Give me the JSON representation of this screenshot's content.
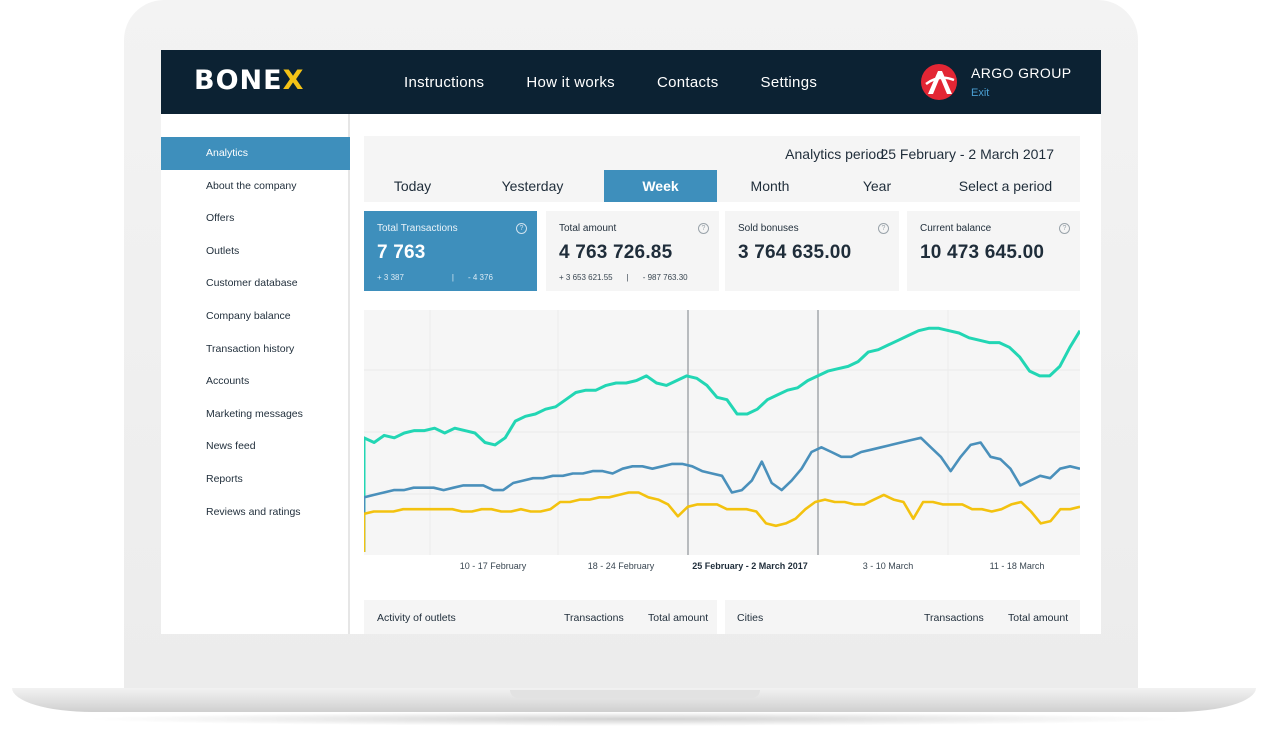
{
  "header": {
    "logo_main": "BONE",
    "logo_accent": "X",
    "nav": [
      "Instructions",
      "How it works",
      "Contacts",
      "Settings"
    ],
    "company": "ARGO GROUP",
    "exit": "Exit",
    "avatar_letter": "A",
    "colors": {
      "bar": "#0c2233",
      "accent": "#f4c316",
      "avatar": "#e32634"
    }
  },
  "sidebar": {
    "items": [
      "Analytics",
      "About the company",
      "Offers",
      "Outlets",
      "Customer database",
      "Company balance",
      "Transaction history",
      "Accounts",
      "Marketing messages",
      "News feed",
      "Reports",
      "Reviews and ratings"
    ],
    "active_index": 0,
    "active_color": "#3e8fbc"
  },
  "period": {
    "label": "Analytics period",
    "value": "25 February - 2 March 2017",
    "tabs": [
      "Today",
      "Yesterday",
      "Week",
      "Month",
      "Year",
      "Select a period"
    ],
    "active_tab": 2
  },
  "stats": [
    {
      "title": "Total Transactions",
      "value": "7 763",
      "plus": "+ 3 387",
      "minus": "- 4 376",
      "active": true
    },
    {
      "title": "Total amount",
      "value": "4 763 726.85",
      "plus": "+ 3 653 621.55",
      "minus": "- 987 763.30",
      "active": false
    },
    {
      "title": "Sold bonuses",
      "value": "3 764 635.00",
      "plus": "",
      "minus": "",
      "active": false
    },
    {
      "title": "Current balance",
      "value": "10 473 645.00",
      "plus": "",
      "minus": "",
      "active": false
    }
  ],
  "help_symbol": "?",
  "chart_data": {
    "type": "line",
    "x_labels": [
      "10 - 17 February",
      "18 - 24 February",
      "25 February - 2 March 2017",
      "3 - 10 March",
      "11 - 18 March"
    ],
    "highlighted_label": "25 February - 2 March 2017",
    "grid": true,
    "series": [
      {
        "color": "#22d6b4",
        "values": [
          48,
          46,
          49,
          48,
          50,
          51,
          51,
          52,
          50,
          52,
          51,
          50,
          46,
          45,
          48,
          55,
          57,
          58,
          60,
          61,
          64,
          67,
          68,
          68,
          70,
          71,
          71,
          72,
          74,
          71,
          70,
          72,
          74,
          73,
          70,
          65,
          64,
          58,
          58,
          60,
          64,
          66,
          68,
          69,
          72,
          74,
          76,
          77,
          78,
          80,
          84,
          85,
          87,
          89,
          91,
          93,
          94,
          94,
          93,
          92,
          90,
          89,
          88,
          88,
          86,
          82,
          76,
          74,
          74,
          78,
          86,
          93
        ]
      },
      {
        "color": "#4a90bb",
        "values": [
          23,
          24,
          25,
          26,
          26,
          27,
          27,
          27,
          26,
          27,
          28,
          28,
          28,
          26,
          26,
          29,
          30,
          31,
          31,
          32,
          32,
          33,
          33,
          34,
          34,
          33,
          35,
          36,
          36,
          35,
          36,
          37,
          37,
          36,
          34,
          33,
          32,
          25,
          26,
          30,
          38,
          29,
          26,
          30,
          35,
          42,
          44,
          42,
          40,
          40,
          42,
          43,
          44,
          45,
          46,
          47,
          48,
          44,
          40,
          34,
          40,
          45,
          46,
          40,
          39,
          35,
          28,
          30,
          32,
          31,
          35,
          36,
          35
        ]
      },
      {
        "color": "#f3c20f",
        "values": [
          16,
          17,
          17,
          17,
          18,
          18,
          18,
          18,
          18,
          18,
          17,
          17,
          18,
          18,
          17,
          17,
          18,
          17,
          17,
          18,
          21,
          21,
          22,
          22,
          23,
          23,
          24,
          25,
          25,
          23,
          22,
          20,
          15,
          19,
          20,
          20,
          20,
          18,
          18,
          18,
          17,
          12,
          11,
          12,
          14,
          18,
          21,
          22,
          21,
          21,
          20,
          20,
          22,
          24,
          22,
          21,
          14,
          21,
          21,
          20,
          20,
          20,
          18,
          18,
          17,
          18,
          20,
          21,
          17,
          12,
          13,
          18,
          18,
          19
        ]
      }
    ]
  },
  "tables": {
    "outlets": {
      "title": "Activity of outlets",
      "col1": "Transactions",
      "col2": "Total amount"
    },
    "cities": {
      "title": "Cities",
      "col1": "Transactions",
      "col2": "Total amount"
    }
  }
}
